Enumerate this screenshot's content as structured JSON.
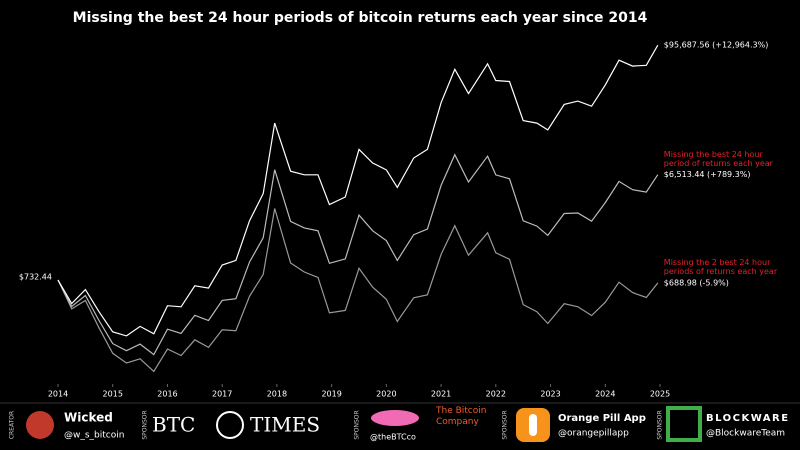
{
  "chart_data": {
    "type": "line",
    "title": "Missing the best 24 hour periods of bitcoin returns each year since 2014",
    "log_y": true,
    "xlim": [
      2014,
      2025
    ],
    "xticks": [
      2014,
      2015,
      2016,
      2017,
      2018,
      2019,
      2020,
      2021,
      2022,
      2023,
      2024,
      2025
    ],
    "ylim": [
      100,
      150000
    ],
    "x": [
      2014,
      2014.25,
      2014.5,
      2014.75,
      2015,
      2015.25,
      2015.5,
      2015.75,
      2016,
      2016.25,
      2016.5,
      2016.75,
      2017,
      2017.25,
      2017.5,
      2017.75,
      2017.96,
      2018.25,
      2018.5,
      2018.75,
      2018.96,
      2019.25,
      2019.5,
      2019.75,
      2020,
      2020.2,
      2020.5,
      2020.75,
      2021,
      2021.25,
      2021.5,
      2021.85,
      2022,
      2022.25,
      2022.5,
      2022.75,
      2022.95,
      2023.25,
      2023.5,
      2023.75,
      2024,
      2024.25,
      2024.5,
      2024.75,
      2024.96
    ],
    "series": [
      {
        "color": "#ffffff",
        "values": [
          732.44,
          450,
          600,
          380,
          250,
          230,
          280,
          240,
          430,
          420,
          650,
          620,
          1000,
          1100,
          2500,
          4400,
          19000,
          7000,
          6500,
          6500,
          3500,
          4100,
          11000,
          8300,
          7200,
          5000,
          9200,
          11000,
          29000,
          58000,
          35000,
          65000,
          46000,
          45000,
          20000,
          19000,
          16500,
          28000,
          30000,
          27000,
          42000,
          70000,
          62000,
          63000,
          95687.56
        ],
        "value_labels": [
          "$732.44",
          null,
          null,
          null,
          null,
          null,
          null,
          null,
          null,
          null,
          null,
          null,
          null,
          null,
          null,
          null,
          null,
          null,
          null,
          null,
          null,
          null,
          null,
          null,
          null,
          null,
          null,
          null,
          null,
          null,
          null,
          null,
          null,
          null,
          null,
          null,
          null,
          null,
          null,
          null,
          null,
          null,
          null,
          null,
          "$95,687.56 (+12,964.3%)"
        ]
      },
      {
        "name": "Missing the best 24 hour period of returns each year",
        "color": "#bbbbbb",
        "values": [
          732.44,
          423,
          531,
          316,
          196,
          169,
          194,
          156,
          264,
          242,
          352,
          316,
          480,
          497,
          1063,
          1760,
          7220,
          2471,
          2158,
          2035,
          1036,
          1136,
          2816,
          2034,
          1656,
          1100,
          1877,
          2112,
          5220,
          9860,
          5600,
          9555,
          6486,
          5985,
          2500,
          2242,
          1848,
          2912,
          2940,
          2484,
          3654,
          5670,
          4774,
          4536,
          6513.44
        ],
        "value_labels": [
          null,
          null,
          null,
          null,
          null,
          null,
          null,
          null,
          null,
          null,
          null,
          null,
          null,
          null,
          null,
          null,
          null,
          null,
          null,
          null,
          null,
          null,
          null,
          null,
          null,
          null,
          null,
          null,
          null,
          null,
          null,
          null,
          null,
          null,
          null,
          null,
          null,
          null,
          null,
          null,
          null,
          null,
          null,
          null,
          "$6,513.44 (+789.3%)"
        ]
      },
      {
        "name": "Missing the 2 best 24 hour periods of returns each year",
        "color": "#999999",
        "values": [
          732.44,
          402,
          479,
          272,
          160,
          131,
          143,
          110,
          175,
          153,
          212,
          181,
          261,
          256,
          523,
          823,
          3230,
          1043,
          865,
          774,
          371,
          390,
          935,
          631,
          490,
          310,
          506,
          539,
          1247,
          2262,
          1225,
          1950,
          1288,
          1125,
          440,
          380,
          297,
          448,
          420,
          351,
          462,
          700,
          564,
          510,
          688.98
        ],
        "value_labels": [
          null,
          null,
          null,
          null,
          null,
          null,
          null,
          null,
          null,
          null,
          null,
          null,
          null,
          null,
          null,
          null,
          null,
          null,
          null,
          null,
          null,
          null,
          null,
          null,
          null,
          null,
          null,
          null,
          null,
          null,
          null,
          null,
          null,
          null,
          null,
          null,
          null,
          null,
          null,
          null,
          null,
          null,
          null,
          null,
          "$688.98 (-5.9%)"
        ]
      }
    ]
  },
  "footer": {
    "creator_tag": "CREATOR",
    "creator_name": "Wicked",
    "creator_handle": "@w_s_bitcoin",
    "sponsor_tag": "SPONSOR",
    "btc": "BTC",
    "times": "TIMES",
    "company": "The Bitcoin Company",
    "company_handle": "@theBTCco",
    "app": "Orange Pill App",
    "app_handle": "@orangepillapp",
    "blockware": "BLOCKWARE",
    "blockware_handle": "@BlockwareTeam"
  }
}
